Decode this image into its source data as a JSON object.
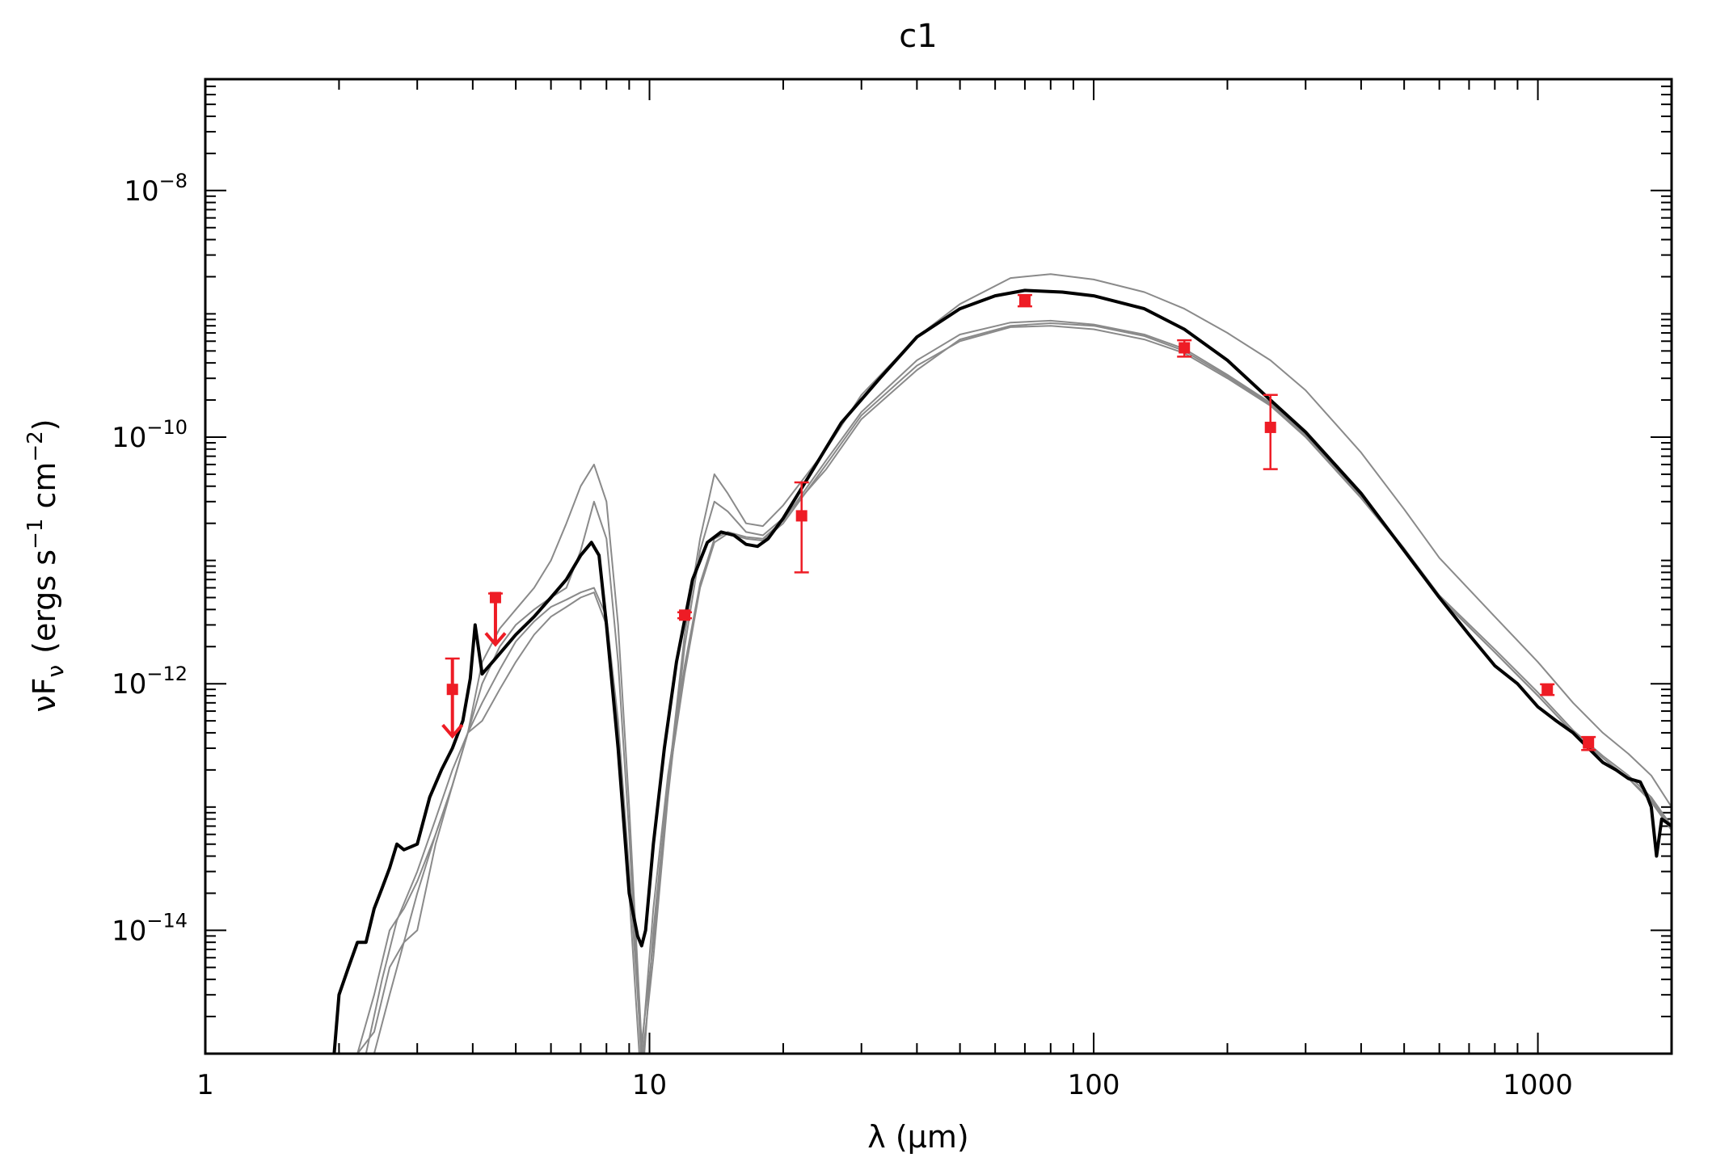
{
  "chart_data": {
    "type": "line",
    "title": "c1",
    "xlabel": "λ (μm)",
    "ylabel_main": "νF",
    "ylabel_sub": "ν",
    "ylabel_units": "(ergs s",
    "ylabel_units_exp1": "−1",
    "ylabel_units_mid": " cm",
    "ylabel_units_exp2": "−2",
    "ylabel_units_end": ")",
    "x_scale": "log",
    "y_scale": "log",
    "xlim": [
      1,
      2000
    ],
    "ylim": [
      1e-15,
      8e-08
    ],
    "x_ticks": [
      {
        "value": 1,
        "label": "1"
      },
      {
        "value": 10,
        "label": "10"
      },
      {
        "value": 100,
        "label": "100"
      },
      {
        "value": 1000,
        "label": "1000"
      }
    ],
    "y_ticks": [
      {
        "value": 1e-14,
        "base": "10",
        "exp": "−14"
      },
      {
        "value": 1e-12,
        "base": "10",
        "exp": "−12"
      },
      {
        "value": 1e-10,
        "base": "10",
        "exp": "−10"
      },
      {
        "value": 1e-08,
        "base": "10",
        "exp": "−8"
      }
    ],
    "colors": {
      "best_fit": "#000000",
      "other_fits": "#8a8a8a",
      "data": "#ee1c25"
    },
    "series": [
      {
        "role": "best_fit",
        "x": [
          1.95,
          2.0,
          2.1,
          2.2,
          2.3,
          2.4,
          2.5,
          2.6,
          2.7,
          2.8,
          3.0,
          3.2,
          3.4,
          3.6,
          3.8,
          3.95,
          4.05,
          4.2,
          4.5,
          5.0,
          5.5,
          6.0,
          6.5,
          7.0,
          7.4,
          7.7,
          8.0,
          8.5,
          9.0,
          9.4,
          9.6,
          9.8,
          10.2,
          10.8,
          11.5,
          12.5,
          13.5,
          14.5,
          15.5,
          16.5,
          17.5,
          18.5,
          20,
          23,
          27,
          33,
          40,
          50,
          60,
          70,
          85,
          100,
          130,
          160,
          200,
          250,
          300,
          400,
          500,
          600,
          700,
          800,
          900,
          1000,
          1100,
          1200,
          1300,
          1400,
          1500,
          1600,
          1700,
          1750,
          1800,
          1850,
          1900,
          2000
        ],
        "y": [
          1e-15,
          3e-15,
          5e-15,
          8e-15,
          8e-15,
          1.5e-14,
          2.2e-14,
          3.2e-14,
          5e-14,
          4.5e-14,
          5e-14,
          1.2e-13,
          2e-13,
          3e-13,
          5e-13,
          1.1e-12,
          3e-12,
          1.2e-12,
          1.6e-12,
          2.5e-12,
          3.5e-12,
          5e-12,
          7e-12,
          1.1e-11,
          1.4e-11,
          1.1e-11,
          3e-12,
          3e-13,
          2e-14,
          9e-15,
          7.5e-15,
          1e-14,
          5e-14,
          3e-13,
          1.5e-12,
          7e-12,
          1.4e-11,
          1.7e-11,
          1.6e-11,
          1.35e-11,
          1.3e-11,
          1.5e-11,
          2.2e-11,
          5e-11,
          1.3e-10,
          3e-10,
          6.5e-10,
          1.1e-09,
          1.4e-09,
          1.55e-09,
          1.5e-09,
          1.4e-09,
          1.1e-09,
          7.5e-10,
          4.2e-10,
          2e-10,
          1.1e-10,
          3.5e-11,
          1.2e-11,
          5e-12,
          2.5e-12,
          1.4e-12,
          1e-12,
          6.5e-13,
          5e-13,
          4e-13,
          3e-13,
          2.3e-13,
          2e-13,
          1.7e-13,
          1.6e-13,
          1.3e-13,
          1e-13,
          4e-14,
          8e-14,
          7e-14
        ]
      },
      {
        "role": "other_fit",
        "x": [
          2.4,
          2.6,
          2.8,
          3.0,
          3.3,
          3.6,
          3.9,
          4.2,
          4.6,
          5.0,
          5.5,
          6.0,
          6.5,
          7.0,
          7.5,
          8.0,
          8.5,
          9.0,
          9.6,
          10.2,
          11,
          12,
          13,
          14,
          15,
          16.5,
          18,
          20,
          25,
          30,
          40,
          50,
          65,
          80,
          100,
          130,
          160,
          200,
          250,
          300,
          400,
          500,
          600,
          800,
          1000,
          1200,
          1400,
          1600,
          1800,
          2000
        ],
        "y": [
          1e-15,
          3e-15,
          8e-15,
          2e-14,
          6e-14,
          1.5e-13,
          4e-13,
          5e-13,
          9e-13,
          1.5e-12,
          2.5e-12,
          3.5e-12,
          4.2e-12,
          5e-12,
          5.5e-12,
          3e-12,
          4e-13,
          2e-14,
          5e-16,
          1e-14,
          1.5e-13,
          1.2e-12,
          6e-12,
          1.4e-11,
          1.65e-11,
          1.5e-11,
          1.45e-11,
          2e-11,
          6e-11,
          1.5e-10,
          3.8e-10,
          6e-10,
          7.8e-10,
          8e-10,
          7.5e-10,
          6.2e-10,
          4.8e-10,
          3e-10,
          1.8e-10,
          1e-10,
          3.2e-11,
          1.2e-11,
          5e-12,
          1.8e-12,
          8e-13,
          4e-13,
          2.5e-13,
          1.7e-13,
          1.1e-13,
          6.5e-14
        ]
      },
      {
        "role": "other_fit",
        "x": [
          2.3,
          2.5,
          2.7,
          3.0,
          3.3,
          3.6,
          3.9,
          4.2,
          4.6,
          5.0,
          5.5,
          6.0,
          6.5,
          7.0,
          7.5,
          8.0,
          8.5,
          9.0,
          9.6,
          10.2,
          11,
          12,
          13,
          14,
          15,
          16.5,
          18,
          20,
          25,
          30,
          40,
          50,
          65,
          80,
          100,
          130,
          160,
          200,
          250,
          300,
          400,
          500,
          600,
          800,
          1000,
          1200,
          1400,
          1600,
          1800,
          2000
        ],
        "y": [
          1e-15,
          4e-15,
          1.2e-14,
          3e-14,
          8e-14,
          2e-13,
          4e-13,
          7e-13,
          1.3e-12,
          2.2e-12,
          3.2e-12,
          4.2e-12,
          4.8e-12,
          5.5e-12,
          6e-12,
          3.5e-12,
          5e-13,
          3e-14,
          1e-15,
          1.5e-14,
          1.8e-13,
          1.4e-12,
          6.5e-12,
          1.5e-11,
          1.7e-11,
          1.55e-11,
          1.5e-11,
          2.1e-11,
          6.5e-11,
          1.6e-10,
          4.2e-10,
          6.8e-10,
          8.5e-10,
          8.8e-10,
          8.2e-10,
          6.8e-10,
          5.2e-10,
          3.2e-10,
          1.9e-10,
          1.05e-10,
          3.4e-11,
          1.25e-11,
          5.2e-12,
          1.9e-12,
          8.5e-13,
          4.2e-13,
          2.6e-13,
          1.8e-13,
          1.2e-13,
          7e-14
        ]
      },
      {
        "role": "other_fit",
        "x": [
          2.2,
          2.4,
          2.6,
          2.8,
          3.0,
          3.3,
          3.6,
          3.9,
          4.2,
          4.6,
          5.0,
          5.5,
          6.0,
          6.5,
          7.0,
          7.5,
          8.0,
          8.5,
          9.0,
          9.6,
          10.2,
          11,
          12,
          13,
          14,
          15,
          16.5,
          18,
          20,
          25,
          30,
          40,
          50,
          65,
          80,
          100,
          130,
          160,
          200,
          250,
          300,
          400,
          500,
          600,
          800,
          1000,
          1200,
          1400,
          1600,
          1800,
          2000
        ],
        "y": [
          1e-15,
          3e-15,
          1e-14,
          1.5e-14,
          2.5e-14,
          6e-14,
          1.5e-13,
          4e-13,
          1e-12,
          2e-12,
          3e-12,
          4e-12,
          5e-12,
          6e-12,
          1.2e-11,
          3e-11,
          1.5e-11,
          1.5e-12,
          6e-14,
          8e-16,
          6e-15,
          1.2e-13,
          2e-12,
          1.2e-11,
          3e-11,
          2.5e-11,
          1.7e-11,
          1.6e-11,
          2.2e-11,
          5.5e-11,
          1.4e-10,
          3.5e-10,
          6.2e-10,
          8e-10,
          8.4e-10,
          8e-10,
          6.6e-10,
          5e-10,
          3.1e-10,
          1.85e-10,
          1.02e-10,
          3.3e-11,
          1.2e-11,
          5e-12,
          1.8e-12,
          8e-13,
          4e-13,
          2.5e-13,
          1.7e-13,
          1.15e-13,
          6.8e-14
        ]
      },
      {
        "role": "other_fit",
        "x": [
          2.2,
          2.4,
          2.6,
          2.8,
          3.0,
          3.3,
          3.6,
          3.9,
          4.2,
          4.6,
          5.0,
          5.5,
          6.0,
          6.5,
          7.0,
          7.5,
          8.0,
          8.5,
          9.0,
          9.6,
          10.2,
          11,
          12,
          13,
          14,
          15,
          16.5,
          18,
          20,
          25,
          30,
          40,
          50,
          65,
          80,
          100,
          130,
          160,
          200,
          250,
          300,
          400,
          500,
          600,
          800,
          1000,
          1200,
          1400,
          1600,
          1800,
          2000
        ],
        "y": [
          1e-15,
          1.5e-15,
          5e-15,
          8e-15,
          1e-14,
          5e-14,
          1.5e-13,
          4e-13,
          1.5e-12,
          2.8e-12,
          4e-12,
          6e-12,
          1e-11,
          2e-11,
          4e-11,
          6e-11,
          3e-11,
          3e-12,
          1e-13,
          1.2e-15,
          8e-15,
          1.5e-13,
          2.5e-12,
          1.5e-11,
          5e-11,
          3.5e-11,
          2e-11,
          1.9e-11,
          2.8e-11,
          8e-11,
          2.2e-10,
          6.5e-10,
          1.2e-09,
          1.95e-09,
          2.1e-09,
          1.9e-09,
          1.5e-09,
          1.1e-09,
          7e-10,
          4.2e-10,
          2.4e-10,
          7.5e-11,
          2.6e-11,
          1.05e-11,
          3.5e-12,
          1.5e-12,
          7e-13,
          4e-13,
          2.7e-13,
          1.8e-13,
          1e-13
        ]
      }
    ],
    "data_points": [
      {
        "x": 3.6,
        "y": 9e-13,
        "yerr_low": 9e-13,
        "yerr_high": 1.6e-12,
        "upper_limit": true
      },
      {
        "x": 4.5,
        "y": 5e-12,
        "yerr_low": 5e-12,
        "yerr_high": 5.4e-12,
        "upper_limit": true
      },
      {
        "x": 12,
        "y": 3.6e-12,
        "yerr_low": 3.4e-12,
        "yerr_high": 3.8e-12,
        "upper_limit": false
      },
      {
        "x": 22,
        "y": 2.3e-11,
        "yerr_low": 8e-12,
        "yerr_high": 4.3e-11,
        "upper_limit": false
      },
      {
        "x": 70,
        "y": 1.3e-09,
        "yerr_low": 1.15e-09,
        "yerr_high": 1.42e-09,
        "upper_limit": false
      },
      {
        "x": 160,
        "y": 5.3e-10,
        "yerr_low": 4.5e-10,
        "yerr_high": 6.1e-10,
        "upper_limit": false
      },
      {
        "x": 250,
        "y": 1.2e-10,
        "yerr_low": 5.5e-11,
        "yerr_high": 2.2e-10,
        "upper_limit": false
      },
      {
        "x": 1050,
        "y": 9e-13,
        "yerr_low": 8.1e-13,
        "yerr_high": 9.9e-13,
        "upper_limit": false
      },
      {
        "x": 1300,
        "y": 3.3e-13,
        "yerr_low": 2.9e-13,
        "yerr_high": 3.7e-13,
        "upper_limit": false
      }
    ]
  }
}
